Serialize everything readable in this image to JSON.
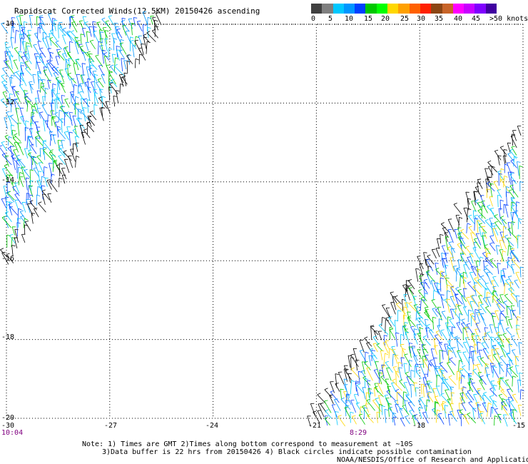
{
  "title": "Rapidscat Corrected Winds(12.5KM) 20150426 ascending",
  "legend": {
    "colors": [
      "#404040",
      "#7f7f7f",
      "#00c8ff",
      "#0096ff",
      "#0040ff",
      "#00c800",
      "#00ff00",
      "#ffd700",
      "#ffa000",
      "#ff6000",
      "#ff2000",
      "#8b4513",
      "#c86428",
      "#ff00ff",
      "#c800ff",
      "#8000ff",
      "#4000a0"
    ],
    "labels": [
      "0",
      "5",
      "10",
      "15",
      "20",
      "25",
      "30",
      "35",
      "40",
      "45",
      ">50 knots"
    ]
  },
  "axes": {
    "x_ticks": [
      "-30",
      "-27",
      "-24",
      "-21",
      "-18",
      "-15"
    ],
    "y_ticks": [
      "-10",
      "-12",
      "-14",
      "-16",
      "-18",
      "-20"
    ],
    "x_range": [
      -30,
      -15
    ],
    "y_range": [
      -10,
      -20
    ]
  },
  "times": [
    "10:04",
    "8:29"
  ],
  "notes": {
    "line1": "Note: 1) Times are GMT 2)Times along bottom correspond to measurement at ~10S",
    "line2": "3)Data buffer is 22 hrs from 20150426 4) Black circles indicate possible contamination",
    "line3": "NOAA/NESDIS/Office of Research and Applications"
  },
  "swaths": {
    "left": {
      "colors": [
        "#00c8ff",
        "#0096ff",
        "#0040ff",
        "#00c800",
        "#000000"
      ]
    },
    "right": {
      "colors": [
        "#0040ff",
        "#0096ff",
        "#00c8ff",
        "#00c800",
        "#ffd700",
        "#000000"
      ]
    }
  }
}
